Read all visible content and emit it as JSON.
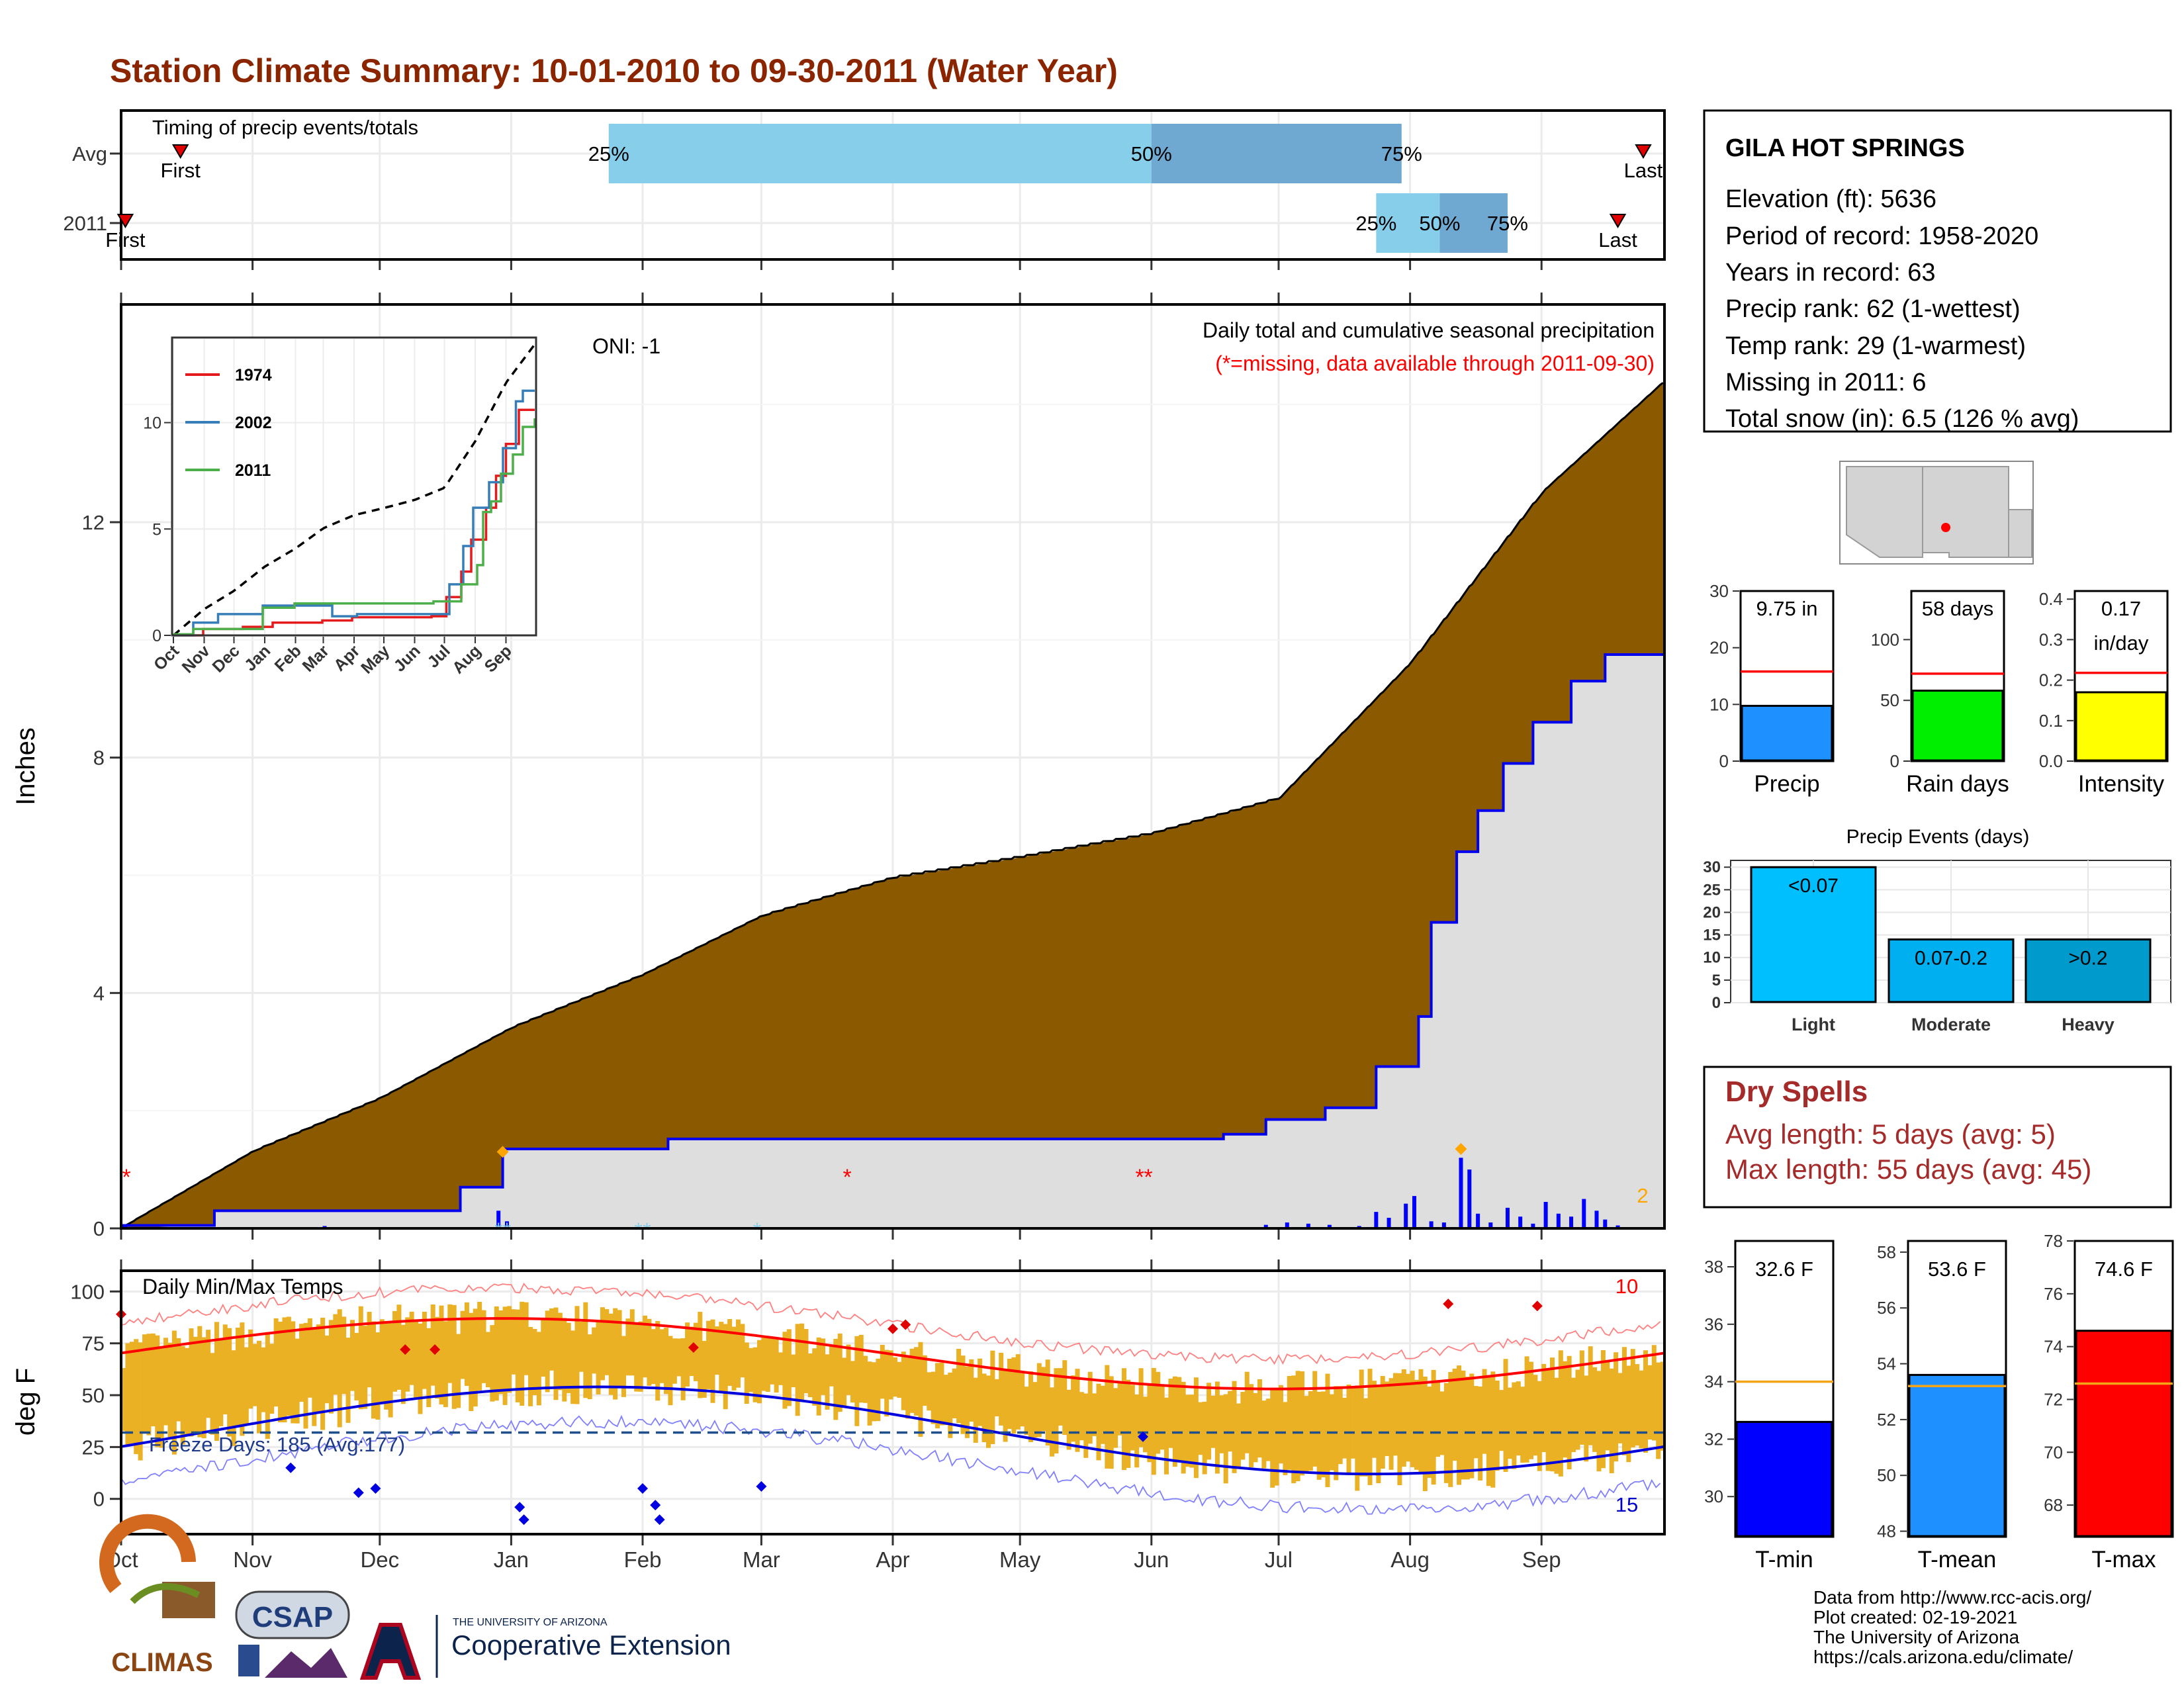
{
  "title": "Station Climate Summary: 10-01-2010 to 09-30-2011 (Water Year)",
  "timing": {
    "label": "Timing of precip events/totals",
    "rows": [
      {
        "label": "Avg",
        "first_label": "First",
        "last_label": "Last",
        "first_date": "2010-10-15",
        "last_date": "2011-09-25",
        "q25": "2011-01-24",
        "q50": "2011-06-01",
        "q75": "2011-07-30",
        "p25": "25%",
        "p50": "50%",
        "p75": "75%"
      },
      {
        "label": "2011",
        "first_label": "First",
        "last_label": "Last",
        "first_date": "2010-10-02",
        "last_date": "2011-09-19",
        "q25": "2011-07-24",
        "q50": "2011-08-08",
        "q75": "2011-08-24",
        "p25": "25%",
        "p50": "50%",
        "p75": "75%"
      }
    ]
  },
  "precip_panel": {
    "caption": "Daily total and cumulative seasonal precipitation",
    "missing_note": "(*=missing, data available through 2011-09-30)",
    "oni": "ONI: -1",
    "ylabel": "Inches",
    "yticks": [
      0,
      4,
      8,
      12
    ],
    "ylim": [
      0,
      15.7
    ],
    "corner_count": "2",
    "months": [
      "Oct",
      "Nov",
      "Dec",
      "Jan",
      "Feb",
      "Mar",
      "Apr",
      "May",
      "Jun",
      "Jul",
      "Aug",
      "Sep"
    ]
  },
  "inset": {
    "yticks": [
      0,
      5,
      10
    ],
    "ylim": [
      0,
      14
    ],
    "months": [
      "Oct",
      "Nov",
      "Dec",
      "Jan",
      "Feb",
      "Mar",
      "Apr",
      "May",
      "Jun",
      "Jul",
      "Aug",
      "Sep"
    ],
    "legend": [
      {
        "name": "1974",
        "color": "#e41a1c"
      },
      {
        "name": "2002",
        "color": "#377eb8"
      },
      {
        "name": "2011",
        "color": "#4daf4a"
      }
    ]
  },
  "temp_panel": {
    "label": "Daily Min/Max Temps",
    "ylabel": "deg F",
    "yticks": [
      0,
      25,
      50,
      75,
      100
    ],
    "ylim": [
      -17,
      110
    ],
    "freeze_note": "Freeze Days: 185 (Avg:177)",
    "max_count": "10",
    "min_count": "15"
  },
  "station": {
    "name": "GILA HOT SPRINGS",
    "lines": [
      "Elevation (ft): 5636",
      "Period of record: 1958-2020",
      "Years in record: 63",
      "Precip rank: 62 (1-wettest)",
      "Temp rank: 29 (1-warmest)",
      "Missing in 2011: 6",
      "Total snow (in): 6.5 (126 % avg)"
    ]
  },
  "mini_bars": [
    {
      "label": "Precip",
      "value": 9.75,
      "avg": 15.8,
      "ymax": 30,
      "yticks": [
        0,
        10,
        20,
        30
      ],
      "value_text": [
        "9.75 in"
      ],
      "color": "#1e90ff"
    },
    {
      "label": "Rain days",
      "value": 58,
      "avg": 72,
      "ymax": 140,
      "yticks": [
        0,
        50,
        100
      ],
      "value_text": [
        "58 days"
      ],
      "color": "#00ee00"
    },
    {
      "label": "Intensity",
      "value": 0.17,
      "avg": 0.218,
      "ymax": 0.42,
      "yticks": [
        0.0,
        0.1,
        0.2,
        0.3,
        0.4
      ],
      "value_text": [
        "0.17",
        "in/day"
      ],
      "color": "#ffff00"
    }
  ],
  "events": {
    "title": "Precip Events (days)",
    "yticks": [
      0,
      5,
      10,
      15,
      20,
      25,
      30
    ],
    "ymax": 31.5,
    "bars": [
      {
        "label": "Light",
        "value": 30,
        "text": "<0.07",
        "color": "#00bfff"
      },
      {
        "label": "Moderate",
        "value": 14,
        "text": "0.07-0.2",
        "color": "#00afef"
      },
      {
        "label": "Heavy",
        "value": 14,
        "text": ">0.2",
        "color": "#009acd"
      }
    ]
  },
  "dry_spells": {
    "title": "Dry Spells",
    "lines": [
      "Avg length: 5 days (avg: 5)",
      "Max length: 55 days (avg: 45)"
    ]
  },
  "temp_bars": [
    {
      "label": "T-min",
      "value": 32.6,
      "avg": 34.0,
      "ymin": 28.6,
      "ymax": 38.9,
      "yticks": [
        30,
        32,
        34,
        36,
        38
      ],
      "value_text": "32.6 F",
      "color": "#0000ff"
    },
    {
      "label": "T-mean",
      "value": 53.6,
      "avg": 53.2,
      "ymin": 47.8,
      "ymax": 58.4,
      "yticks": [
        48,
        50,
        52,
        54,
        56,
        58
      ],
      "value_text": "53.6 F",
      "color": "#1e90ff"
    },
    {
      "label": "T-max",
      "value": 74.6,
      "avg": 72.6,
      "ymin": 66.8,
      "ymax": 78.0,
      "yticks": [
        68,
        70,
        72,
        74,
        76,
        78
      ],
      "value_text": "74.6 F",
      "color": "#ff0000"
    }
  ],
  "credits": [
    "Data from http://www.rcc-acis.org/",
    "Plot created: 02-19-2021",
    "The University of Arizona",
    "https://cals.arizona.edu/climate/"
  ],
  "logos": {
    "climas": "CLIMAS",
    "csap": "CSAP",
    "ua_small": "THE UNIVERSITY OF ARIZONA",
    "ua_big": "Cooperative Extension"
  },
  "chart_data": {
    "type": "area",
    "title": "Station Climate Summary: 10-01-2010 to 09-30-2011 (Water Year)",
    "xlabel": "",
    "ylabel": "Inches",
    "ylim": [
      0,
      15.7
    ],
    "x": [
      "Oct",
      "Nov",
      "Dec",
      "Jan",
      "Feb",
      "Mar",
      "Apr",
      "May",
      "Jun",
      "Jul",
      "Aug",
      "Sep",
      "Sep-30"
    ],
    "series": [
      {
        "name": "",
        "values": [
          0.0,
          1.3,
          2.2,
          3.4,
          4.3,
          5.3,
          5.95,
          6.3,
          6.7,
          7.3,
          9.6,
          12.5,
          14.4
        ]
      },
      {
        "name": "",
        "values": [
          0.0,
          0.25,
          0.25,
          1.35,
          1.6,
          1.6,
          1.6,
          1.6,
          1.6,
          1.6,
          3.5,
          8.0,
          9.75
        ]
      }
    ],
    "grid": true,
    "legend": "none"
  }
}
